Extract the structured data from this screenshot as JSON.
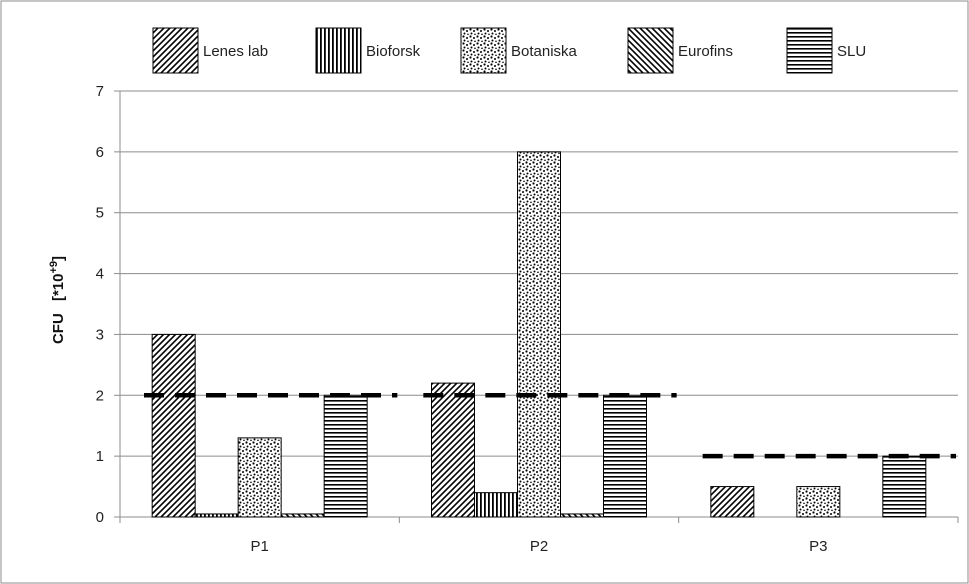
{
  "chart_data": {
    "type": "bar",
    "categories": [
      "P1",
      "P2",
      "P3"
    ],
    "series": [
      {
        "name": "Lenes lab",
        "pattern": "diagonal",
        "values": [
          3.0,
          2.2,
          0.5
        ]
      },
      {
        "name": "Bioforsk",
        "pattern": "vertical",
        "values": [
          0.05,
          0.4,
          0
        ]
      },
      {
        "name": "Botaniska",
        "pattern": "dots",
        "values": [
          1.3,
          6.0,
          0.5
        ]
      },
      {
        "name": "Eurofins",
        "pattern": "back-diagonal",
        "values": [
          0.05,
          0.05,
          0
        ]
      },
      {
        "name": "SLU",
        "pattern": "horizontal",
        "values": [
          2.0,
          2.0,
          1.0
        ]
      }
    ],
    "reference_lines": [
      2,
      2,
      1
    ],
    "ylim": [
      0,
      7
    ],
    "yticks": [
      "0",
      "1",
      "2",
      "3",
      "4",
      "5",
      "6",
      "7"
    ],
    "ylabel": {
      "main": "CFU",
      "bracket_open": "[*10",
      "exponent": "+9",
      "bracket_close": "]"
    },
    "xlabel": "",
    "title": "",
    "grid": true,
    "legend_position": "top"
  }
}
